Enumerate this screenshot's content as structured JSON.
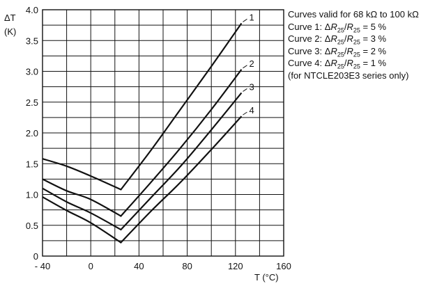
{
  "chart_data": {
    "type": "line",
    "xlabel": "T (°C)",
    "ylabel_top": "ΔT",
    "ylabel_bottom": "(K)",
    "xlim": [
      -40,
      160
    ],
    "ylim": [
      0,
      4.0
    ],
    "x_ticks": [
      -40,
      0,
      40,
      80,
      120,
      160
    ],
    "x_tick_labels": [
      "- 40",
      "0",
      "40",
      "80",
      "120",
      "160"
    ],
    "y_ticks": [
      0,
      0.5,
      1.0,
      1.5,
      2.0,
      2.5,
      3.0,
      3.5,
      4.0
    ],
    "y_tick_labels": [
      "0",
      "0.5",
      "1.0",
      "1.5",
      "2.0",
      "2.5",
      "3.0",
      "3.5",
      "4.0"
    ],
    "grid": true,
    "series": [
      {
        "name": "1",
        "x": [
          -40,
          -20,
          0,
          25,
          50,
          75,
          100,
          125
        ],
        "y": [
          1.58,
          1.46,
          1.3,
          1.08,
          1.72,
          2.4,
          3.08,
          3.78
        ]
      },
      {
        "name": "2",
        "x": [
          -40,
          -20,
          0,
          25,
          50,
          75,
          100,
          125
        ],
        "y": [
          1.25,
          1.06,
          0.92,
          0.65,
          1.2,
          1.77,
          2.38,
          3.03
        ]
      },
      {
        "name": "3",
        "x": [
          -40,
          -20,
          0,
          25,
          50,
          75,
          100,
          125
        ],
        "y": [
          1.1,
          0.88,
          0.7,
          0.43,
          0.95,
          1.47,
          2.05,
          2.65
        ]
      },
      {
        "name": "4",
        "x": [
          -40,
          -20,
          0,
          25,
          50,
          75,
          100,
          125
        ],
        "y": [
          0.96,
          0.74,
          0.54,
          0.22,
          0.73,
          1.21,
          1.73,
          2.27
        ]
      }
    ]
  },
  "notes": {
    "line1": "Curves valid for 68 kΩ to 100 kΩ",
    "curves": [
      {
        "prefix": "Curve 1: Δ",
        "r1": "R",
        "s1": "25",
        "slash": "/",
        "r2": "R",
        "s2": "25",
        "suffix": " = 5 %"
      },
      {
        "prefix": "Curve 2: Δ",
        "r1": "R",
        "s1": "25",
        "slash": "/",
        "r2": "R",
        "s2": "25",
        "suffix": " = 3 %"
      },
      {
        "prefix": "Curve 3: Δ",
        "r1": "R",
        "s1": "25",
        "slash": "/",
        "r2": "R",
        "s2": "25",
        "suffix": " = 2 %"
      },
      {
        "prefix": "Curve 4: Δ",
        "r1": "R",
        "s1": "25",
        "slash": "/",
        "r2": "R",
        "s2": "25",
        "suffix": " = 1 %"
      }
    ],
    "line_last": "(for NTCLE203E3 series only)"
  }
}
